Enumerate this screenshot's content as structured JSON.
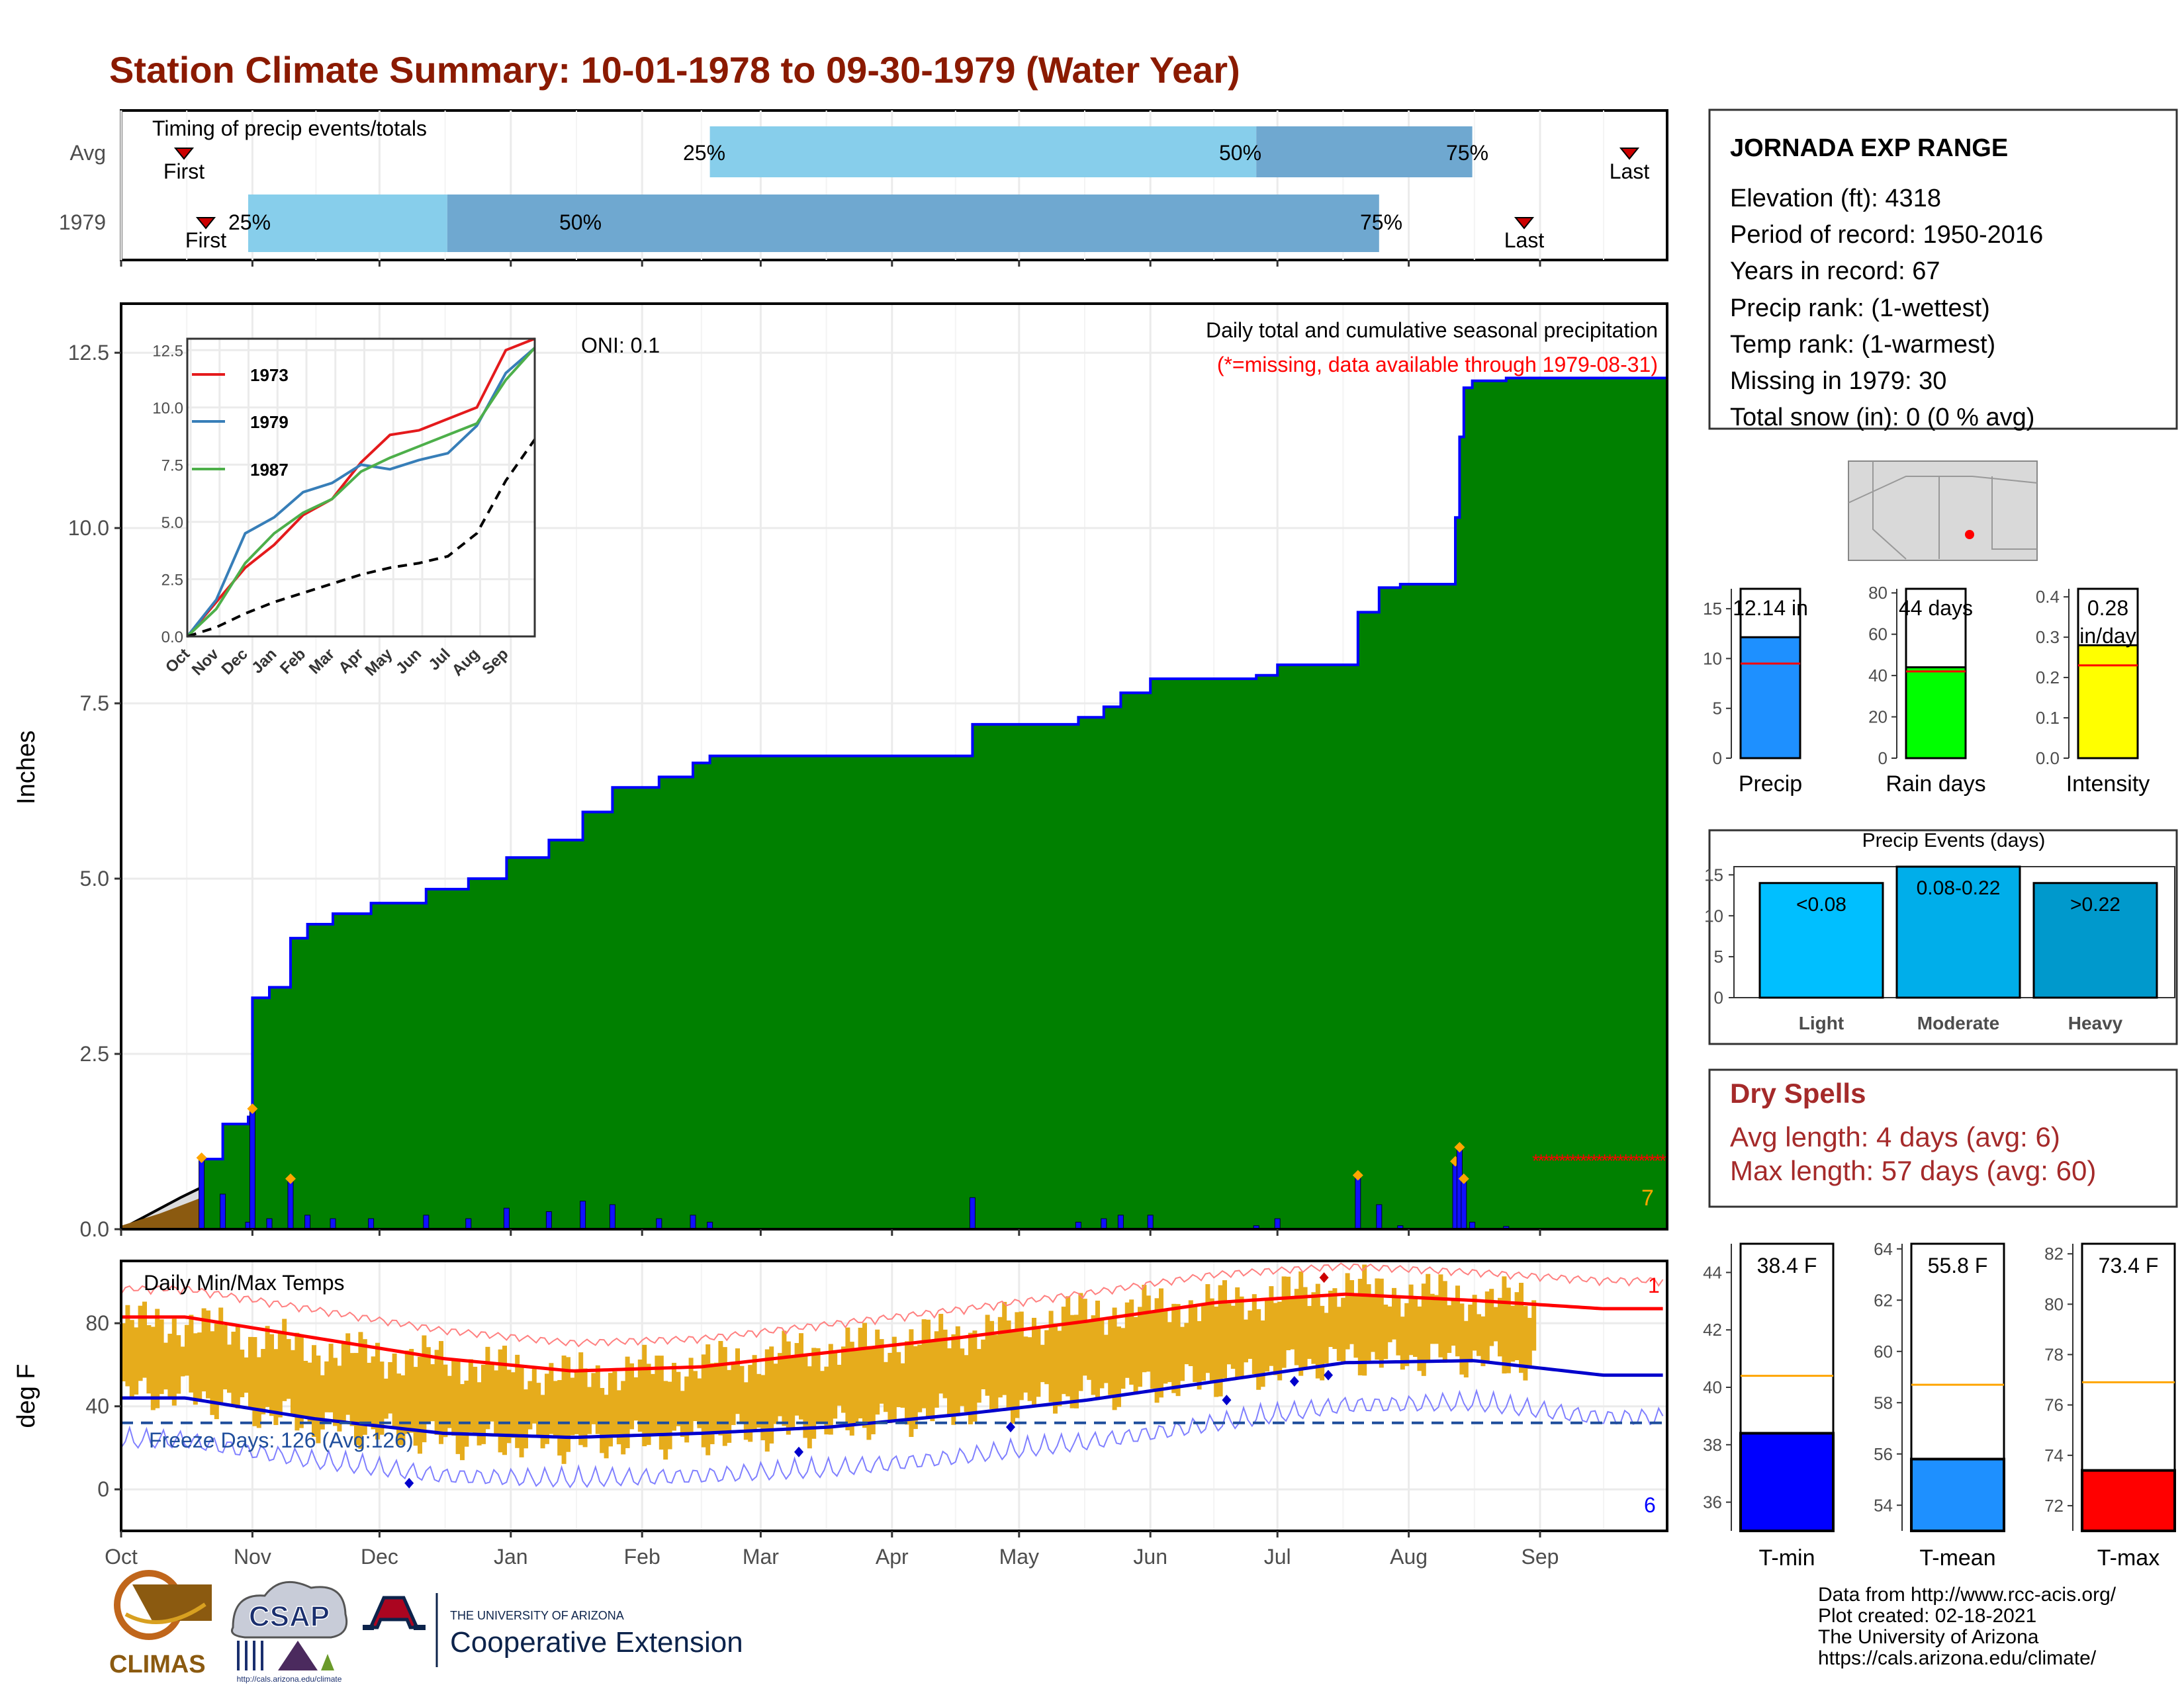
{
  "title": "Station Climate Summary: 10-01-1978 to 09-30-1979 (Water Year)",
  "colors": {
    "title": "#8b1a00",
    "accum": "#008000",
    "avgfill": "#dcdcdc",
    "start": "#8b5a10",
    "precipbar": "#1010ff",
    "marker": "#ffa500",
    "missing": "#ff0000",
    "temprange": "#e6ac1c",
    "tmaxavg": "#ff0000",
    "tminavg": "#0000cc",
    "freeze": "#1f4e9c"
  },
  "months": [
    "Oct",
    "Nov",
    "Dec",
    "Jan",
    "Feb",
    "Mar",
    "Apr",
    "May",
    "Jun",
    "Jul",
    "Aug",
    "Sep"
  ],
  "timing": {
    "heading": "Timing of precip events/totals",
    "rows": [
      {
        "label": "Avg",
        "first": "First",
        "last": "Last",
        "p25": "25%",
        "p50": "50%",
        "p75": "75%"
      },
      {
        "label": "1979",
        "first": "First",
        "last": "Last",
        "p25": "25%",
        "p50": "50%",
        "p75": "75%"
      }
    ]
  },
  "precip_panel": {
    "ylabel": "Inches",
    "oni": "ONI: 0.1",
    "note": "Daily total and cumulative seasonal precipitation",
    "missing_note": "(*=missing, data available through 1979-08-31)",
    "marker_count": "7",
    "yticks": [
      "0.0",
      "2.5",
      "5.0",
      "7.5",
      "10.0",
      "12.5"
    ]
  },
  "inset": {
    "legend": [
      "1973",
      "1979",
      "1987"
    ],
    "colors": [
      "#e41a1c",
      "#377eb8",
      "#4daf4a"
    ],
    "yticks": [
      "0.0",
      "2.5",
      "5.0",
      "7.5",
      "10.0",
      "12.5"
    ]
  },
  "temp_panel": {
    "ylabel": "deg F",
    "heading": "Daily Min/Max Temps",
    "freeze_label": "Freeze Days: 126 (Avg:126)",
    "record_high_count": "1",
    "record_low_count": "6",
    "yticks": [
      "0",
      "40",
      "80"
    ]
  },
  "station": {
    "name": "JORNADA EXP RANGE",
    "lines": [
      "Elevation (ft): 4318",
      "Period of record: 1950-2016",
      "Years in record: 67",
      "Precip rank:  (1-wettest)",
      "Temp rank:  (1-warmest)",
      "Missing in 1979: 30",
      "Total snow (in): 0 (0 % avg)"
    ]
  },
  "mini_bars": [
    {
      "value_label": "12.14 in",
      "xlabel": "Precip",
      "ticks": [
        "0",
        "5",
        "10",
        "15"
      ],
      "color": "#1e90ff"
    },
    {
      "value_label": "44 days",
      "xlabel": "Rain days",
      "ticks": [
        "0",
        "20",
        "40",
        "60",
        "80"
      ],
      "color": "#00ff00"
    },
    {
      "value_label": "0.28 in/day",
      "xlabel": "Intensity",
      "ticks": [
        "0.0",
        "0.1",
        "0.2",
        "0.3",
        "0.4"
      ],
      "color": "#ffff00"
    }
  ],
  "precip_events": {
    "title": "Precip Events (days)",
    "ticks": [
      "0",
      "5",
      "10",
      "15"
    ],
    "bars": [
      {
        "label": "<0.08",
        "xlabel": "Light",
        "color": "#00bfff"
      },
      {
        "label": "0.08-0.22",
        "xlabel": "Moderate",
        "color": "#00aeea"
      },
      {
        "label": ">0.22",
        "xlabel": "Heavy",
        "color": "#0099cc"
      }
    ]
  },
  "dry_spells": {
    "title": "Dry Spells",
    "avg": "Avg length: 4 days (avg: 6)",
    "max": "Max length: 57 days (avg: 60)"
  },
  "temp_bars": [
    {
      "value_label": "38.4 F",
      "xlabel": "T-min",
      "ticks": [
        "36",
        "38",
        "40",
        "42",
        "44"
      ],
      "color": "#0000ff"
    },
    {
      "value_label": "55.8 F",
      "xlabel": "T-mean",
      "ticks": [
        "54",
        "56",
        "58",
        "60",
        "62",
        "64"
      ],
      "color": "#1e90ff"
    },
    {
      "value_label": "73.4 F",
      "xlabel": "T-max",
      "ticks": [
        "72",
        "74",
        "76",
        "78",
        "80",
        "82"
      ],
      "color": "#ff0000"
    }
  ],
  "footer": {
    "credits": [
      "Data from http://www.rcc-acis.org/",
      "Plot created: 02-18-2021",
      "The University of Arizona",
      "https://cals.arizona.edu/climate/"
    ],
    "logos": {
      "climas": "CLIMAS",
      "csap": "CSAP",
      "csap_url": "http://cals.arizona.edu/climate",
      "ua_small": "THE UNIVERSITY OF ARIZONA",
      "ua_big": "Cooperative Extension"
    }
  },
  "chart_data": [
    {
      "type": "bar",
      "title": "Timing of precip events/totals",
      "categories": [
        "Avg",
        "1979"
      ],
      "series": [
        {
          "name": "First",
          "values": [
            "1978-10-16",
            "1978-10-21"
          ]
        },
        {
          "name": "25%",
          "values": [
            "1979-02-17",
            "1978-10-31"
          ]
        },
        {
          "name": "50%",
          "values": [
            "1979-06-26",
            "1978-12-17"
          ]
        },
        {
          "name": "75%",
          "values": [
            "1979-08-16",
            "1979-07-25"
          ]
        },
        {
          "name": "Last",
          "values": [
            "1979-09-22",
            "1979-08-30"
          ]
        }
      ],
      "xlim": [
        "1978-10-01",
        "1979-09-30"
      ]
    },
    {
      "type": "area",
      "title": "Daily total and cumulative seasonal precipitation",
      "ylabel": "Inches",
      "ylim": [
        0,
        13.2
      ],
      "xlim": [
        "1978-10-01",
        "1979-09-30"
      ],
      "series": [
        {
          "name": "1979",
          "x": [
            "1978-10-01",
            "1978-10-20",
            "1978-10-25",
            "1978-10-31",
            "1978-11-01",
            "1978-11-05",
            "1978-11-10",
            "1978-11-14",
            "1978-11-20",
            "1978-11-29",
            "1978-12-12",
            "1978-12-22",
            "1978-12-31",
            "1979-01-10",
            "1979-01-18",
            "1979-01-25",
            "1979-02-05",
            "1979-02-13",
            "1979-02-17",
            "1979-04-20",
            "1979-05-15",
            "1979-05-21",
            "1979-05-25",
            "1979-06-01",
            "1979-06-26",
            "1979-07-01",
            "1979-07-20",
            "1979-07-25",
            "1979-07-30",
            "1979-08-12",
            "1979-08-13",
            "1979-08-14",
            "1979-08-16",
            "1979-08-24",
            "1979-08-31",
            "1979-09-30"
          ],
          "values": [
            0.0,
            1.0,
            1.5,
            1.6,
            3.3,
            3.45,
            4.15,
            4.35,
            4.5,
            4.65,
            4.85,
            5.0,
            5.3,
            5.55,
            5.95,
            6.3,
            6.45,
            6.65,
            6.75,
            7.2,
            7.3,
            7.45,
            7.65,
            7.85,
            7.9,
            8.05,
            8.8,
            9.15,
            9.2,
            10.15,
            11.3,
            12.0,
            12.1,
            12.14,
            12.14,
            12.14
          ]
        },
        {
          "name": "Avg",
          "x": [
            "1978-10-01",
            "1978-10-15",
            "1978-11-01",
            "1978-12-01",
            "1979-01-01",
            "1979-02-01",
            "1979-03-01",
            "1979-04-01",
            "1979-05-01",
            "1979-06-01",
            "1979-06-20",
            "1979-07-01",
            "1979-07-15",
            "1979-08-01",
            "1979-08-15",
            "1979-09-01",
            "1979-09-15",
            "1979-09-30"
          ],
          "values": [
            0.0,
            0.45,
            0.95,
            1.45,
            1.95,
            2.35,
            2.75,
            3.0,
            3.2,
            3.5,
            3.75,
            4.0,
            4.55,
            5.5,
            6.7,
            7.7,
            8.45,
            9.15
          ]
        }
      ]
    },
    {
      "type": "line",
      "title": "Inset: cumulative precipitation analog years",
      "categories": [
        "Oct",
        "Nov",
        "Dec",
        "Jan",
        "Feb",
        "Mar",
        "Apr",
        "May",
        "Jun",
        "Jul",
        "Aug",
        "Sep"
      ],
      "ylim": [
        0,
        13
      ],
      "series": [
        {
          "name": "1973",
          "values": [
            1.5,
            3.0,
            4.0,
            5.3,
            6.0,
            7.6,
            8.8,
            9.0,
            9.5,
            10.0,
            12.5,
            13.0
          ]
        },
        {
          "name": "1979",
          "values": [
            1.6,
            4.5,
            5.2,
            6.3,
            6.7,
            7.5,
            7.3,
            7.7,
            8.0,
            9.2,
            11.5,
            12.6
          ]
        },
        {
          "name": "1987",
          "values": [
            1.2,
            3.2,
            4.5,
            5.4,
            6.0,
            7.2,
            7.8,
            8.3,
            8.8,
            9.3,
            11.2,
            12.6
          ]
        },
        {
          "name": "",
          "values": [
            0.4,
            1.0,
            1.5,
            1.9,
            2.3,
            2.7,
            3.0,
            3.2,
            3.5,
            4.5,
            6.8,
            8.6
          ]
        }
      ]
    },
    {
      "type": "line",
      "title": "Daily Min/Max Temps",
      "ylabel": "deg F",
      "ylim": [
        -20,
        110
      ],
      "categories": [
        "Oct",
        "Nov",
        "Dec",
        "Jan",
        "Feb",
        "Mar",
        "Apr",
        "May",
        "Jun",
        "Jul",
        "Aug",
        "Sep"
      ],
      "series": [
        {
          "name": "Avg Tmax",
          "values": [
            83,
            73,
            63,
            57,
            59,
            66,
            73,
            81,
            90,
            94,
            91,
            87
          ]
        },
        {
          "name": "Avg Tmin",
          "values": [
            44,
            34,
            27,
            25,
            27,
            30,
            36,
            43,
            52,
            61,
            62,
            55
          ]
        },
        {
          "name": "1979 Tmax",
          "values": [
            80,
            67,
            62,
            55,
            60,
            68,
            75,
            85,
            90,
            97,
            92,
            88
          ]
        },
        {
          "name": "1979 Tmin",
          "values": [
            46,
            31,
            24,
            22,
            25,
            30,
            38,
            46,
            53,
            63,
            63,
            56
          ]
        }
      ],
      "freeze_line": 32
    },
    {
      "type": "bar",
      "categories": [
        "Precip",
        "Rain days",
        "Intensity"
      ],
      "values": [
        12.14,
        44,
        0.28
      ],
      "averages": [
        9.5,
        42,
        0.23
      ],
      "ylims": [
        [
          0,
          17
        ],
        [
          0,
          82
        ],
        [
          0,
          0.42
        ]
      ]
    },
    {
      "type": "bar",
      "title": "Precip Events (days)",
      "categories": [
        "Light",
        "Moderate",
        "Heavy"
      ],
      "values": [
        14,
        16,
        14
      ],
      "ylim": [
        0,
        16
      ]
    },
    {
      "type": "bar",
      "categories": [
        "T-min",
        "T-mean",
        "T-max"
      ],
      "values": [
        38.4,
        55.8,
        73.4
      ],
      "averages": [
        40.4,
        58.7,
        76.9
      ],
      "ylims": [
        [
          35,
          45
        ],
        [
          53,
          64.2
        ],
        [
          71,
          82.4
        ]
      ]
    }
  ]
}
